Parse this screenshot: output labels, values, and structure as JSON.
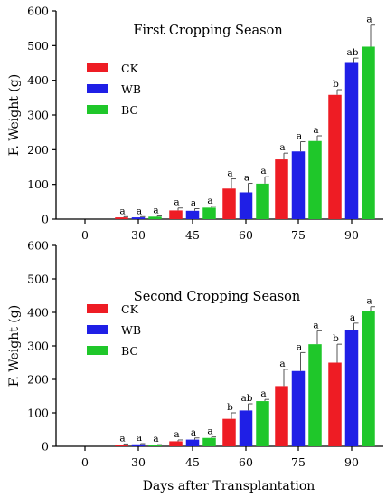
{
  "chart_data": [
    {
      "type": "bar",
      "title": "First Cropping Season",
      "ylabel": "F. Weight (g)",
      "xlabel": "",
      "categories": [
        "0",
        "30",
        "45",
        "60",
        "75",
        "90"
      ],
      "ylim": [
        0,
        600
      ],
      "yticks": [
        "0",
        "100",
        "200",
        "300",
        "400",
        "500",
        "600"
      ],
      "legend_position": "upper-left",
      "series": [
        {
          "name": "CK",
          "color": "#ee1c24",
          "values": [
            0,
            5,
            25,
            88,
            172,
            358
          ],
          "errors": [
            0,
            2,
            7,
            28,
            18,
            15
          ],
          "letters": [
            "",
            "a",
            "a",
            "a",
            "a",
            "b"
          ]
        },
        {
          "name": "WB",
          "color": "#1f1fe6",
          "values": [
            0,
            5,
            24,
            77,
            195,
            450
          ],
          "errors": [
            0,
            2,
            6,
            26,
            28,
            14
          ],
          "letters": [
            "",
            "a",
            "a",
            "a",
            "a",
            "ab"
          ]
        },
        {
          "name": "BC",
          "color": "#1fc72a",
          "values": [
            0,
            7,
            33,
            102,
            225,
            497
          ],
          "errors": [
            0,
            2,
            4,
            20,
            15,
            62
          ],
          "letters": [
            "",
            "a",
            "a",
            "a",
            "a",
            "a"
          ]
        }
      ]
    },
    {
      "type": "bar",
      "title": "Second Cropping Season",
      "ylabel": "F. Weight (g)",
      "xlabel": "Days after Transplantation",
      "categories": [
        "0",
        "30",
        "45",
        "60",
        "75",
        "90"
      ],
      "ylim": [
        0,
        600
      ],
      "yticks": [
        "0",
        "100",
        "200",
        "300",
        "400",
        "500",
        "600"
      ],
      "legend_position": "upper-left",
      "series": [
        {
          "name": "CK",
          "color": "#ee1c24",
          "values": [
            0,
            5,
            15,
            82,
            180,
            250
          ],
          "errors": [
            0,
            2,
            4,
            18,
            50,
            55
          ],
          "letters": [
            "",
            "a",
            "a",
            "b",
            "a",
            "b"
          ]
        },
        {
          "name": "WB",
          "color": "#1f1fe6",
          "values": [
            0,
            6,
            20,
            107,
            225,
            348
          ],
          "errors": [
            0,
            2,
            5,
            20,
            55,
            20
          ],
          "letters": [
            "",
            "a",
            "a",
            "ab",
            "a",
            "a"
          ]
        },
        {
          "name": "BC",
          "color": "#1fc72a",
          "values": [
            0,
            4,
            25,
            135,
            305,
            405
          ],
          "errors": [
            0,
            1,
            3,
            5,
            40,
            12
          ],
          "letters": [
            "",
            "a",
            "a",
            "a",
            "a",
            "a"
          ]
        }
      ]
    }
  ]
}
